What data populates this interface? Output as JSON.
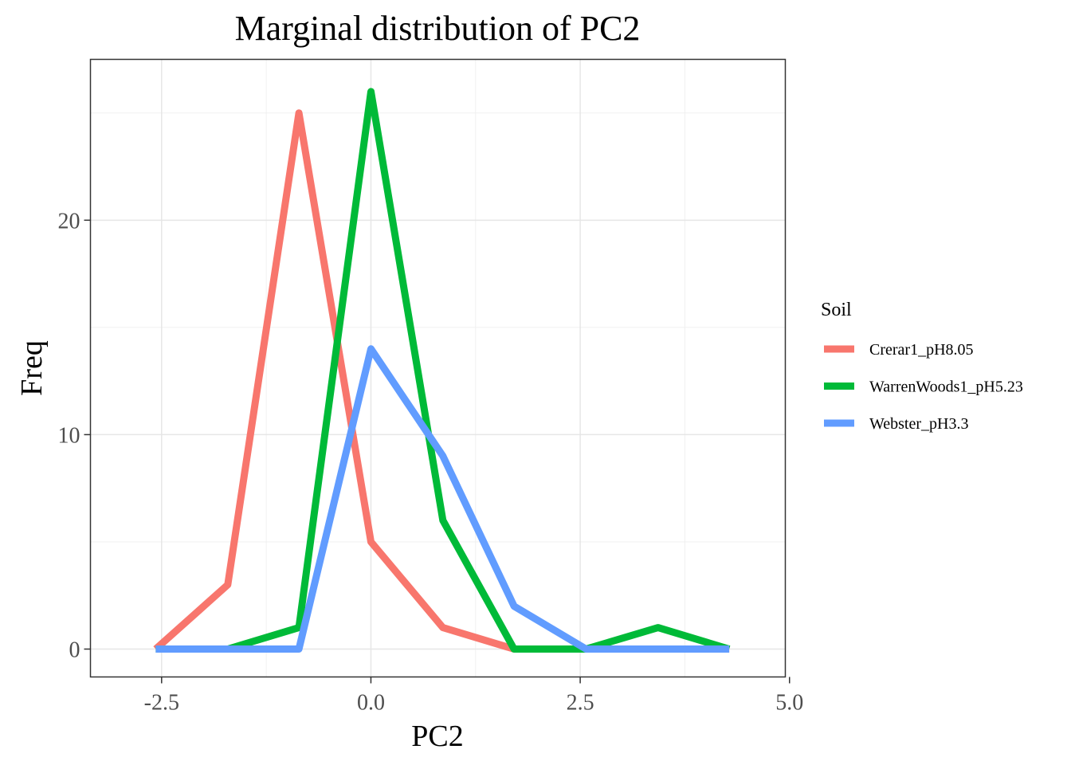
{
  "chart_data": {
    "type": "line",
    "title": "Marginal distribution of PC2",
    "xlabel": "PC2",
    "ylabel": "Freq",
    "xlim": [
      -3.35,
      4.95
    ],
    "ylim": [
      -1.3,
      27.5
    ],
    "x_ticks": [
      -2.5,
      0.0,
      2.5,
      5.0
    ],
    "x_tick_labels": [
      "-2.5",
      "0.0",
      "2.5",
      "5.0"
    ],
    "y_ticks": [
      0,
      10,
      20
    ],
    "y_tick_labels": [
      "0",
      "10",
      "20"
    ],
    "grid": true,
    "legend": {
      "title": "Soil",
      "position": "right"
    },
    "series": [
      {
        "name": "Crerar1_pH8.05",
        "color": "#F8766D",
        "x": [
          -2.57,
          -1.71,
          -0.86,
          0.0,
          0.86,
          1.71,
          2.57,
          3.43,
          4.28
        ],
        "y": [
          0,
          3,
          25,
          5,
          1,
          0,
          0,
          0,
          0
        ]
      },
      {
        "name": "WarrenWoods1_pH5.23",
        "color": "#00BA38",
        "x": [
          -2.57,
          -1.71,
          -0.86,
          0.0,
          0.86,
          1.71,
          2.57,
          3.43,
          4.28
        ],
        "y": [
          0,
          0,
          1,
          26,
          6,
          0,
          0,
          1,
          0
        ]
      },
      {
        "name": "Webster_pH3.3",
        "color": "#619CFF",
        "x": [
          -2.57,
          -1.71,
          -0.86,
          0.0,
          0.86,
          1.71,
          2.57,
          3.43,
          4.28
        ],
        "y": [
          0,
          0,
          0,
          14,
          9,
          2,
          0,
          0,
          0
        ]
      }
    ]
  }
}
